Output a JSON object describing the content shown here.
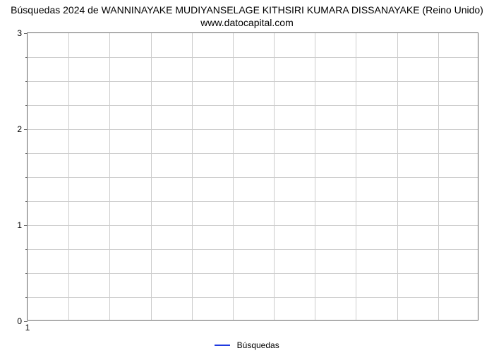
{
  "title": {
    "line1": "Búsquedas 2024 de WANNINAYAKE MUDIYANSELAGE KITHSIRI KUMARA DISSANAYAKE (Reino Unido)",
    "line2": "www.datocapital.com",
    "fontsize": 14,
    "color": "#000000"
  },
  "chart": {
    "type": "line",
    "background_color": "#ffffff",
    "border_color": "#666666",
    "grid_color": "#cccccc",
    "grid_width": 1,
    "xlim": [
      1,
      12
    ],
    "ylim": [
      0,
      3
    ],
    "x_major_ticks": [
      1
    ],
    "x_minor_gridlines": [
      1,
      2,
      3,
      4,
      5,
      6,
      7,
      8,
      9,
      10,
      11,
      12
    ],
    "y_major_ticks": [
      0,
      1,
      2,
      3
    ],
    "y_minor_ticks_per_interval": 4,
    "tick_label_fontsize": 12,
    "tick_label_color": "#000000",
    "series": [
      {
        "name": "Búsquedas",
        "color": "#1f3ae0",
        "line_width": 2,
        "x": [
          1
        ],
        "y": [
          0
        ]
      }
    ]
  },
  "legend": {
    "label": "Búsquedas",
    "swatch_color": "#1f3ae0",
    "swatch_width": 22,
    "swatch_line_width": 2,
    "fontsize": 12,
    "position": "bottom-center"
  }
}
